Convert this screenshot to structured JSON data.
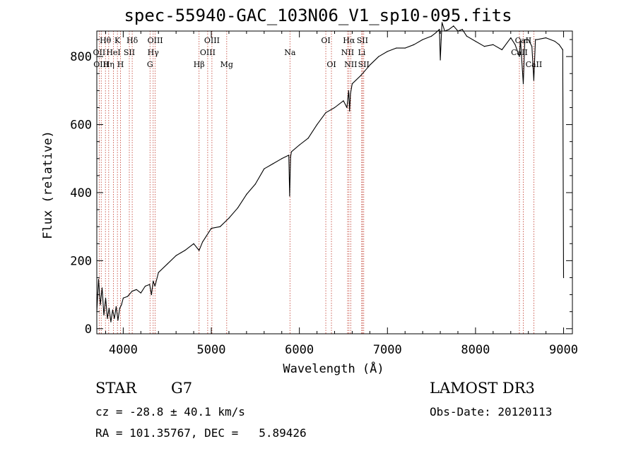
{
  "chart_data": {
    "type": "line",
    "title": "spec-55940-GAC_103N06_V1_sp10-095.fits",
    "xlabel": "Wavelength (Å)",
    "ylabel": "Flux (relative)",
    "xlim": [
      3700,
      9100
    ],
    "ylim": [
      -15,
      875
    ],
    "x_ticks": [
      4000,
      5000,
      6000,
      7000,
      8000,
      9000
    ],
    "y_ticks": [
      0,
      200,
      400,
      600,
      800
    ],
    "series": [
      {
        "name": "flux",
        "x": [
          3700,
          3720,
          3740,
          3760,
          3780,
          3800,
          3820,
          3840,
          3860,
          3880,
          3900,
          3920,
          3940,
          3960,
          3980,
          4000,
          4050,
          4100,
          4150,
          4200,
          4250,
          4300,
          4320,
          4340,
          4360,
          4400,
          4500,
          4600,
          4700,
          4800,
          4861,
          4900,
          5000,
          5100,
          5200,
          5300,
          5400,
          5500,
          5600,
          5700,
          5800,
          5880,
          5890,
          5900,
          5910,
          6000,
          6100,
          6200,
          6300,
          6400,
          6500,
          6540,
          6560,
          6570,
          6580,
          6600,
          6700,
          6800,
          6900,
          7000,
          7100,
          7200,
          7300,
          7400,
          7500,
          7550,
          7590,
          7600,
          7610,
          7620,
          7650,
          7700,
          7750,
          7800,
          7850,
          7900,
          8000,
          8100,
          8200,
          8300,
          8400,
          8450,
          8498,
          8510,
          8542,
          8560,
          8600,
          8640,
          8662,
          8680,
          8700,
          8800,
          8900,
          8950,
          8990,
          9000
        ],
        "y": [
          50,
          145,
          70,
          120,
          40,
          90,
          30,
          60,
          20,
          55,
          30,
          65,
          25,
          60,
          70,
          90,
          95,
          110,
          115,
          105,
          125,
          130,
          100,
          140,
          125,
          165,
          190,
          215,
          230,
          250,
          230,
          255,
          295,
          300,
          325,
          355,
          395,
          425,
          470,
          485,
          500,
          510,
          390,
          505,
          520,
          540,
          560,
          600,
          635,
          650,
          670,
          650,
          700,
          640,
          690,
          720,
          745,
          775,
          800,
          815,
          825,
          825,
          835,
          850,
          860,
          870,
          880,
          790,
          850,
          900,
          875,
          880,
          890,
          875,
          880,
          860,
          845,
          830,
          835,
          820,
          855,
          835,
          800,
          850,
          720,
          850,
          850,
          830,
          730,
          850,
          850,
          855,
          845,
          835,
          820,
          150
        ],
        "color": "#000000"
      }
    ],
    "lines": [
      {
        "label": "Hθ",
        "x": 3798,
        "row": 1
      },
      {
        "label": "OII",
        "x": 3727,
        "row": 2
      },
      {
        "label": "OIII",
        "x": 3750,
        "row": 3
      },
      {
        "label": "Hη",
        "x": 3835,
        "row": 3
      },
      {
        "label": "K",
        "x": 3934,
        "row": 1
      },
      {
        "label": "HeI",
        "x": 3889,
        "row": 2
      },
      {
        "label": "H",
        "x": 3969,
        "row": 3
      },
      {
        "label": "Hδ",
        "x": 4102,
        "row": 1
      },
      {
        "label": "SII",
        "x": 4069,
        "row": 2
      },
      {
        "label": "OIII",
        "x": 4363,
        "row": 1
      },
      {
        "label": "Hγ",
        "x": 4340,
        "row": 2
      },
      {
        "label": "G",
        "x": 4304,
        "row": 3
      },
      {
        "label": "Hβ",
        "x": 4861,
        "row": 3
      },
      {
        "label": "OIII",
        "x": 5007,
        "row": 1
      },
      {
        "label": "OIII",
        "x": 4959,
        "row": 2
      },
      {
        "label": "Mg",
        "x": 5175,
        "row": 3
      },
      {
        "label": "Na",
        "x": 5893,
        "row": 2
      },
      {
        "label": "OI",
        "x": 6300,
        "row": 1
      },
      {
        "label": "OI",
        "x": 6364,
        "row": 3
      },
      {
        "label": "Hα",
        "x": 6563,
        "row": 1
      },
      {
        "label": "NII",
        "x": 6548,
        "row": 2
      },
      {
        "label": "NII",
        "x": 6583,
        "row": 3
      },
      {
        "label": "SII",
        "x": 6716,
        "row": 1
      },
      {
        "label": "Li",
        "x": 6708,
        "row": 2
      },
      {
        "label": "SII",
        "x": 6731,
        "row": 3
      },
      {
        "label": "CaII",
        "x": 8542,
        "row": 1
      },
      {
        "label": "CaII",
        "x": 8498,
        "row": 2
      },
      {
        "label": "CaII",
        "x": 8662,
        "row": 3
      }
    ]
  },
  "info": {
    "object_class": "STAR",
    "subclass": "G7",
    "survey": "LAMOST DR3",
    "cz": "cz = -28.8 ± 40.1 km/s",
    "obs_date": "Obs-Date: 20120113",
    "radec": "RA = 101.35767, DEC =   5.89426"
  }
}
